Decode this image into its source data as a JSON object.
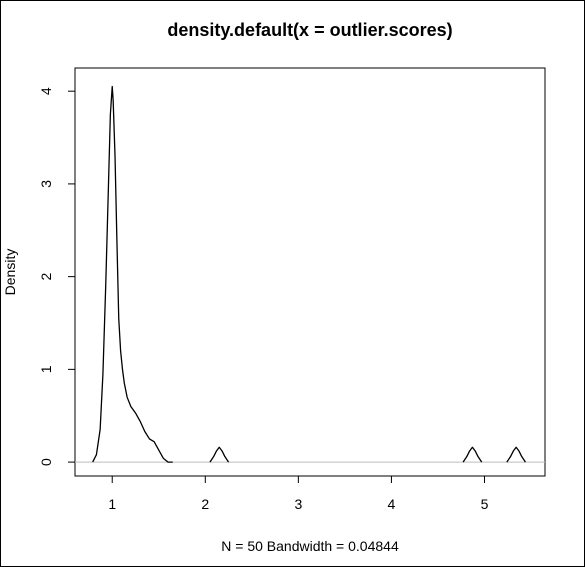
{
  "chart_data": {
    "type": "line",
    "title": "density.default(x = outlier.scores)",
    "xlabel": "N = 50   Bandwidth = 0.04844",
    "ylabel": "Density",
    "xlim": [
      0.6,
      5.65
    ],
    "ylim": [
      -0.15,
      4.25
    ],
    "x_ticks": [
      1,
      2,
      3,
      4,
      5
    ],
    "y_ticks": [
      0,
      1,
      2,
      3,
      4
    ],
    "grid": false,
    "baseline": 0,
    "series": [
      {
        "x": [
          0.79,
          0.83,
          0.87,
          0.9,
          0.93,
          0.96,
          0.98,
          1.0,
          1.01,
          1.03,
          1.05,
          1.07,
          1.09,
          1.11,
          1.13,
          1.16,
          1.2,
          1.25,
          1.3,
          1.35,
          1.4,
          1.45,
          1.5,
          1.55,
          1.6,
          1.65
        ],
        "y": [
          0.0,
          0.08,
          0.35,
          0.95,
          1.9,
          3.0,
          3.75,
          4.05,
          3.9,
          3.3,
          2.4,
          1.55,
          1.2,
          1.0,
          0.85,
          0.7,
          0.6,
          0.53,
          0.44,
          0.33,
          0.25,
          0.22,
          0.13,
          0.04,
          0.0,
          0.0
        ]
      },
      {
        "x": [
          2.05,
          2.09,
          2.12,
          2.15,
          2.18,
          2.21,
          2.25
        ],
        "y": [
          0.0,
          0.06,
          0.12,
          0.16,
          0.12,
          0.06,
          0.0
        ]
      },
      {
        "x": [
          4.77,
          4.81,
          4.84,
          4.87,
          4.9,
          4.93,
          4.97
        ],
        "y": [
          0.0,
          0.06,
          0.12,
          0.16,
          0.12,
          0.06,
          0.0
        ]
      },
      {
        "x": [
          5.24,
          5.28,
          5.31,
          5.34,
          5.37,
          5.4,
          5.44
        ],
        "y": [
          0.0,
          0.06,
          0.12,
          0.16,
          0.12,
          0.06,
          0.0
        ]
      }
    ],
    "colors": {
      "line": "#000000",
      "baseline": "#bebebe",
      "box": "#000000"
    }
  }
}
